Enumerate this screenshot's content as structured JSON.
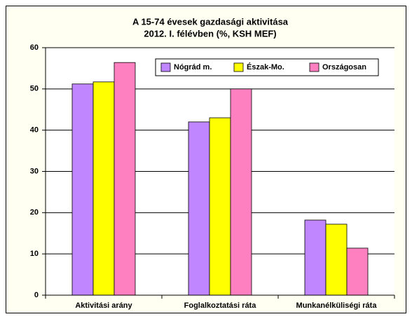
{
  "chart_data": {
    "type": "bar",
    "title": "A 15-74 évesek gazdasági aktivitása",
    "subtitle": "2012. I. félévben (%, KSH MEF)",
    "categories": [
      "Aktivitási arány",
      "Foglalkoztatási ráta",
      "Munkanélküliségi ráta"
    ],
    "series": [
      {
        "name": "Nógrád m.",
        "color": "#bf86ff",
        "values": [
          51.2,
          42.0,
          18.2
        ]
      },
      {
        "name": "Észak-Mo.",
        "color": "#ffff00",
        "values": [
          51.7,
          43.0,
          17.2
        ]
      },
      {
        "name": "Országosan",
        "color": "#ff80c0",
        "values": [
          56.4,
          50.0,
          11.4
        ]
      }
    ],
    "ylim": [
      0,
      60
    ],
    "yticks": [
      0,
      10,
      20,
      30,
      40,
      50,
      60
    ],
    "grid": true,
    "legend": "top-right"
  }
}
